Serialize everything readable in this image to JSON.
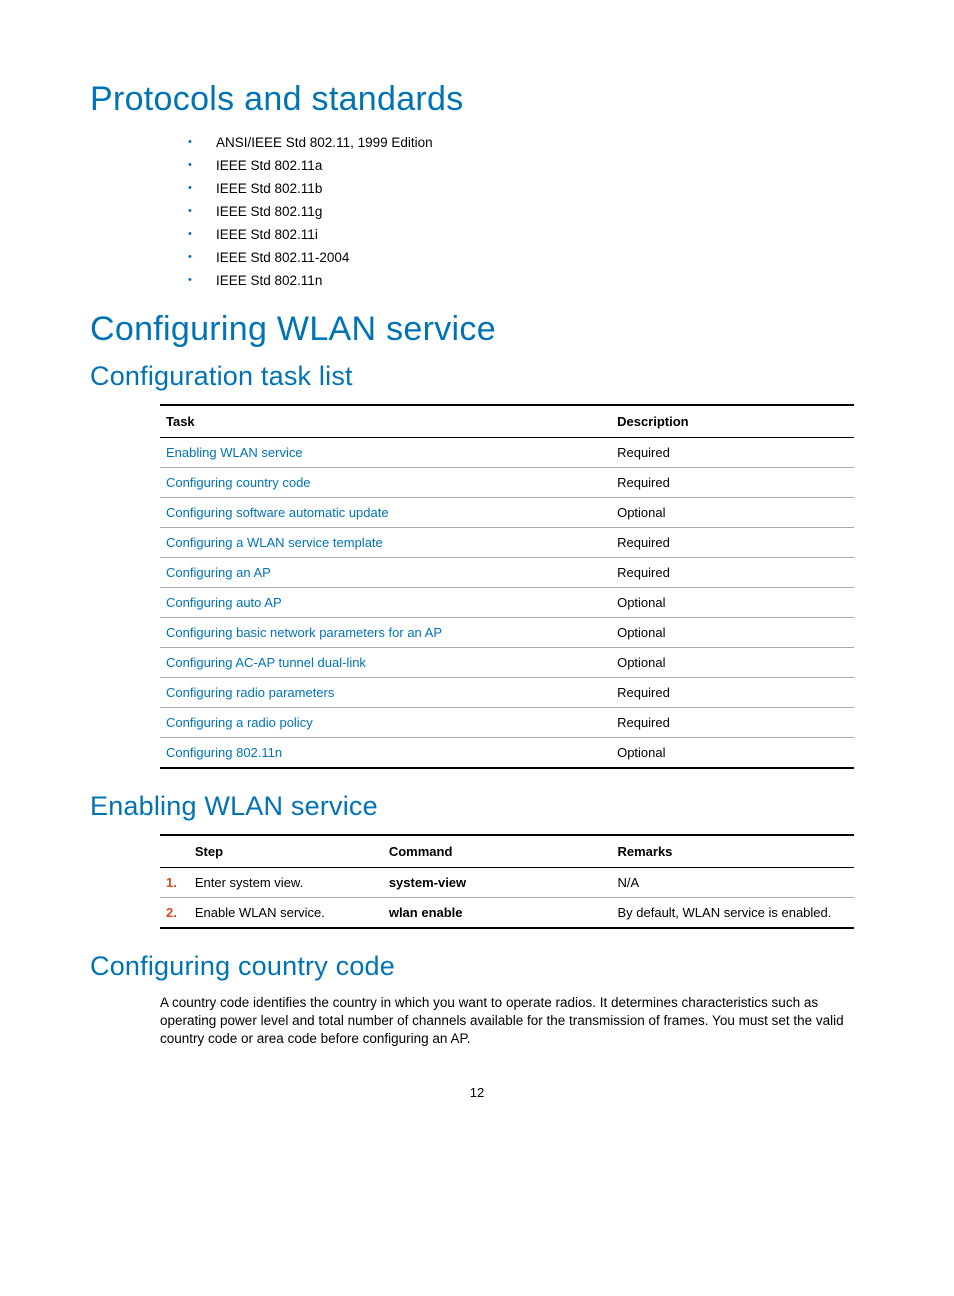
{
  "colors": {
    "accent": "#0073b5",
    "step_num": "#d34b1d",
    "text": "#000000",
    "rule_light": "#aaaaaa",
    "rule_dark": "#000000",
    "bg": "#ffffff"
  },
  "typography": {
    "h1_size": 34,
    "h2_size": 27,
    "body_size": 13.5,
    "table_size": 13,
    "font_family": "Futura / light sans-serif"
  },
  "h1_protocols": "Protocols and standards",
  "standards": [
    "ANSI/IEEE Std 802.11, 1999 Edition",
    "IEEE Std 802.11a",
    "IEEE Std 802.11b",
    "IEEE Std 802.11g",
    "IEEE Std 802.11i",
    "IEEE Std 802.11-2004",
    "IEEE Std 802.11n"
  ],
  "h1_config": "Configuring WLAN service",
  "h2_tasklist": "Configuration task list",
  "task_table": {
    "columns": [
      "Task",
      "Description"
    ],
    "rows": [
      {
        "task": "Enabling WLAN service",
        "link": true,
        "desc": "Required"
      },
      {
        "task": "Configuring country code",
        "link": true,
        "desc": "Required"
      },
      {
        "task": "Configuring software automatic update",
        "link": true,
        "desc": "Optional"
      },
      {
        "task": "Configuring a WLAN service template",
        "link": true,
        "desc": "Required"
      },
      {
        "task": "Configuring an AP",
        "link": true,
        "desc": "Required"
      },
      {
        "task": "Configuring auto AP",
        "link": true,
        "desc": "Optional"
      },
      {
        "task": "Configuring basic network parameters for an AP",
        "link": true,
        "desc": "Optional"
      },
      {
        "task": "Configuring AC-AP tunnel dual-link",
        "link": true,
        "desc": "Optional"
      },
      {
        "task": "Configuring radio parameters",
        "link": true,
        "desc": "Required"
      },
      {
        "task": "Configuring a radio policy",
        "link": true,
        "desc": "Required"
      },
      {
        "task": "Configuring 802.11n",
        "link": true,
        "desc": "Optional"
      }
    ]
  },
  "h2_enable": "Enabling WLAN service",
  "step_table": {
    "columns": [
      "Step",
      "Command",
      "Remarks"
    ],
    "rows": [
      {
        "num": "1.",
        "step": "Enter system view.",
        "cmd": "system-view",
        "remarks": "N/A"
      },
      {
        "num": "2.",
        "step": "Enable WLAN service.",
        "cmd": "wlan enable",
        "remarks": "By default, WLAN service is enabled."
      }
    ]
  },
  "h2_country": "Configuring country code",
  "country_para": "A country code identifies the country in which you want to operate radios. It determines characteristics such as operating power level and total number of channels available for the transmission of frames. You must set the valid country code or area code before configuring an AP.",
  "page_number": "12"
}
